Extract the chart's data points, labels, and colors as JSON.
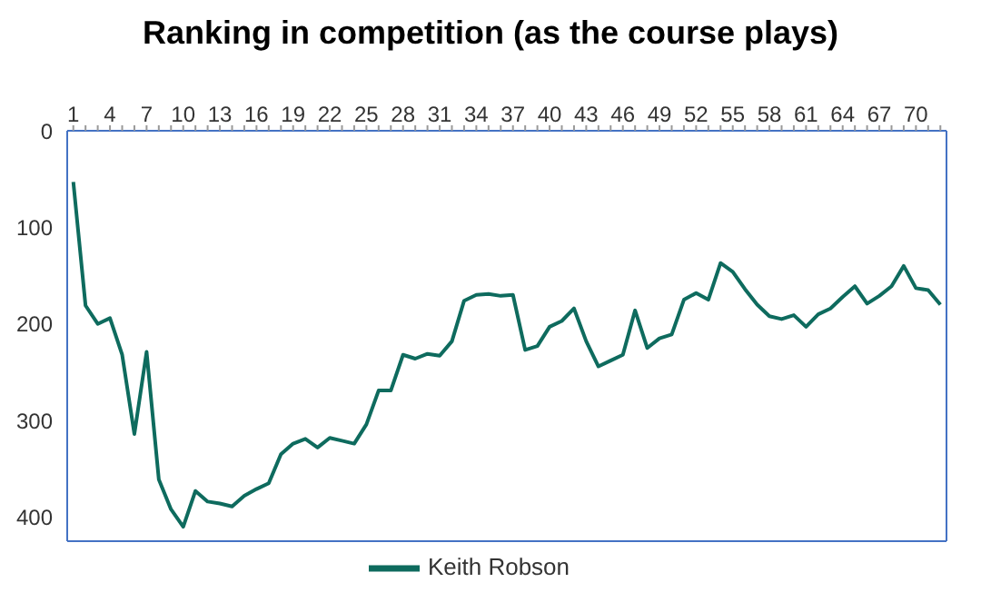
{
  "chart_data": {
    "type": "line",
    "title": "Ranking in competition (as the course plays)",
    "categories": [
      "1",
      null,
      null,
      "4",
      null,
      null,
      "7",
      null,
      null,
      "10",
      null,
      null,
      "13",
      null,
      null,
      "16",
      null,
      null,
      "19",
      null,
      null,
      "22",
      null,
      null,
      "25",
      null,
      null,
      "28",
      null,
      null,
      "31",
      null,
      null,
      "34",
      null,
      null,
      "37",
      null,
      null,
      "40",
      null,
      null,
      "43",
      null,
      null,
      "46",
      null,
      null,
      "49",
      null,
      null,
      "52",
      null,
      null,
      "55",
      null,
      null,
      "58",
      null,
      null,
      "61",
      null,
      null,
      "64",
      null,
      null,
      "67",
      null,
      null,
      "70",
      null,
      null
    ],
    "series": [
      {
        "name": "Keith Robson",
        "color": "#0e6b5e",
        "values": [
          53,
          181,
          200,
          194,
          232,
          314,
          229,
          361,
          392,
          410,
          373,
          384,
          386,
          389,
          378,
          371,
          365,
          335,
          324,
          319,
          328,
          318,
          321,
          324,
          304,
          269,
          269,
          232,
          236,
          231,
          233,
          218,
          176,
          170,
          169,
          171,
          170,
          227,
          223,
          203,
          197,
          184,
          218,
          244,
          238,
          232,
          186,
          225,
          215,
          211,
          175,
          168,
          175,
          137,
          146,
          164,
          180,
          192,
          195,
          191,
          203,
          190,
          184,
          172,
          161,
          179,
          171,
          161,
          140,
          163,
          165,
          180
        ]
      }
    ],
    "ylim": [
      425,
      0
    ],
    "yticks": [
      0,
      100,
      200,
      300,
      400
    ],
    "legend": "bottom",
    "marker": "none",
    "line_style": "solid"
  }
}
